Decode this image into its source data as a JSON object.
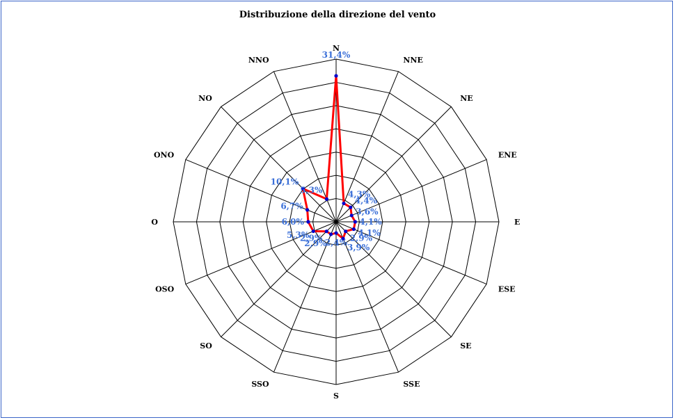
{
  "chart_data": {
    "type": "radar",
    "title": "Distribuzione della direzione del vento",
    "categories": [
      "N",
      "NNE",
      "NE",
      "ENE",
      "E",
      "ESE",
      "SE",
      "SSE",
      "S",
      "SSO",
      "SO",
      "OSO",
      "O",
      "ONO",
      "NO",
      "NNO"
    ],
    "values": [
      31.4,
      4.3,
      4.4,
      3.6,
      4.1,
      4.1,
      2.9,
      3.9,
      2.4,
      2.9,
      2.9,
      5.3,
      6.0,
      6.7,
      10.1,
      5.3
    ],
    "value_labels": [
      "31,4%",
      "4,3%",
      "4,4%",
      "3,6%",
      "4,1%",
      "4,1%",
      "2,9%",
      "3,9%",
      "2,4%",
      "2,9%",
      "2,9%",
      "5,3%",
      "6,0%",
      "6,7%",
      "10,1%",
      "5,3%"
    ],
    "rmax": 35,
    "rings": 7,
    "grid": true,
    "colors": {
      "line": "#ff0000",
      "marker": "#0000cc",
      "value_label": "#3a6fd8",
      "grid": "#000000",
      "border": "#3a64c8"
    }
  }
}
